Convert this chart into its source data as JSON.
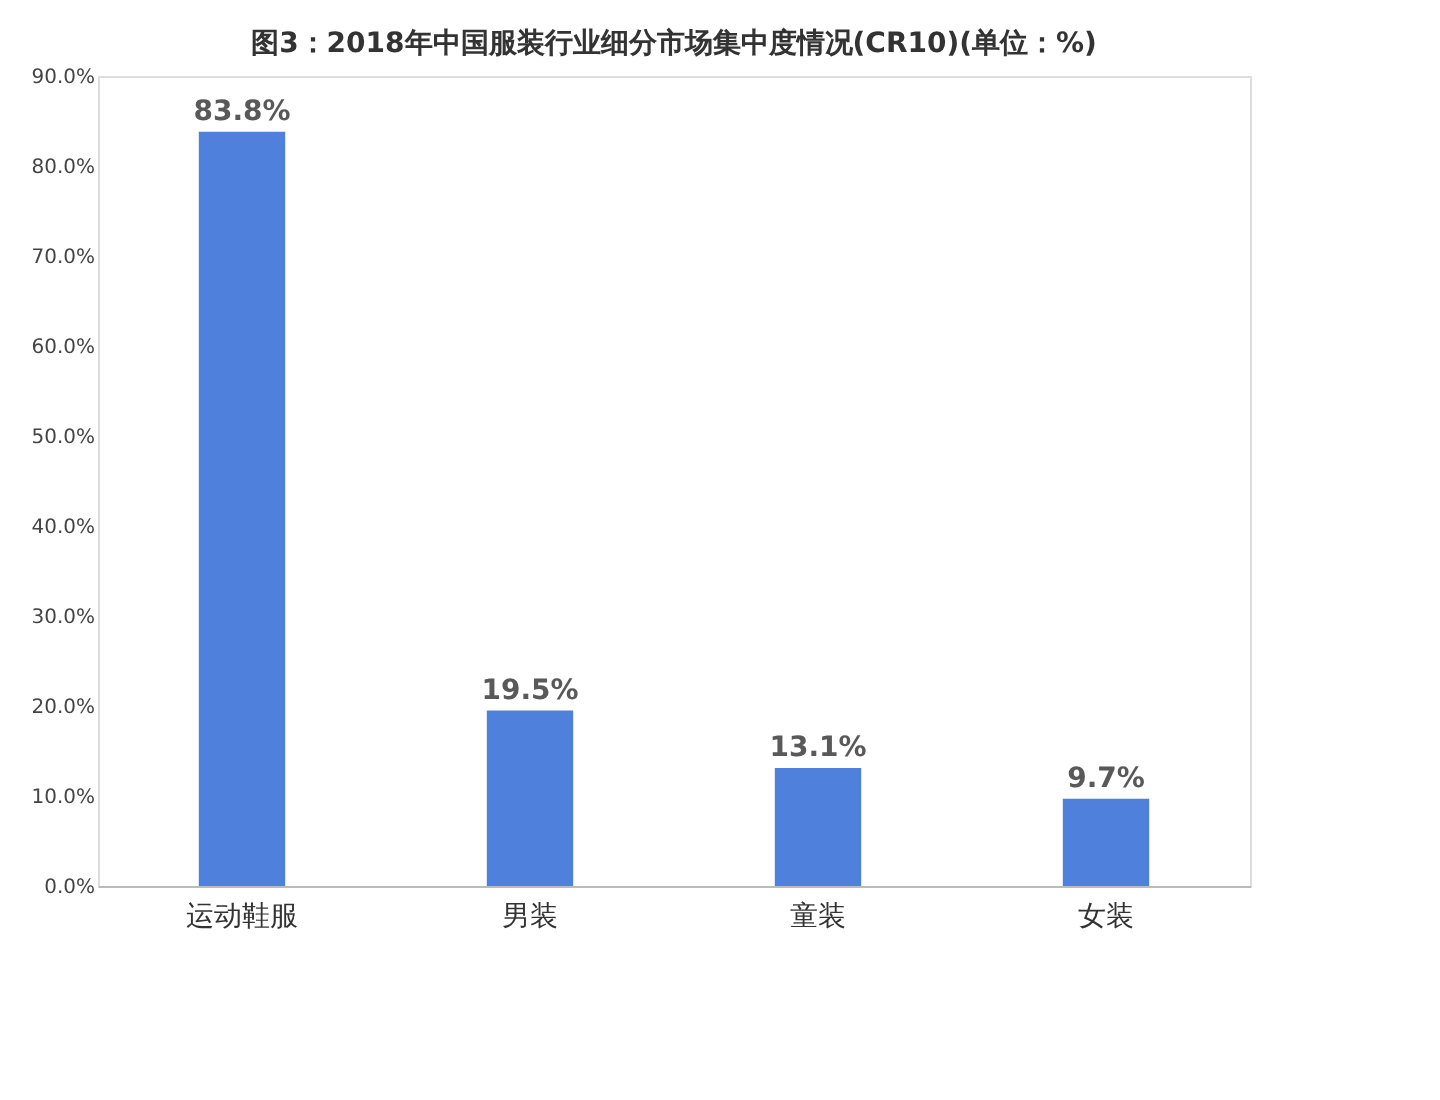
{
  "chart_data": {
    "type": "bar",
    "title": "图3：2018年中国服装行业细分市场集中度情况(CR10)(单位：%)",
    "categories": [
      "运动鞋服",
      "男装",
      "童装",
      "女装"
    ],
    "values": [
      83.8,
      19.5,
      13.1,
      9.7
    ],
    "value_labels": [
      "83.8%",
      "19.5%",
      "13.1%",
      "9.7%"
    ],
    "color": "#4f81dc",
    "ylim": [
      0,
      90
    ],
    "yticks": [
      {
        "value": 0,
        "label": "0.0%"
      },
      {
        "value": 10,
        "label": "10.0%"
      },
      {
        "value": 20,
        "label": "20.0%"
      },
      {
        "value": 30,
        "label": "30.0%"
      },
      {
        "value": 40,
        "label": "40.0%"
      },
      {
        "value": 50,
        "label": "50.0%"
      },
      {
        "value": 60,
        "label": "60.0%"
      },
      {
        "value": 70,
        "label": "70.0%"
      },
      {
        "value": 80,
        "label": "80.0%"
      },
      {
        "value": 90,
        "label": "90.0%"
      }
    ],
    "grid": false
  }
}
